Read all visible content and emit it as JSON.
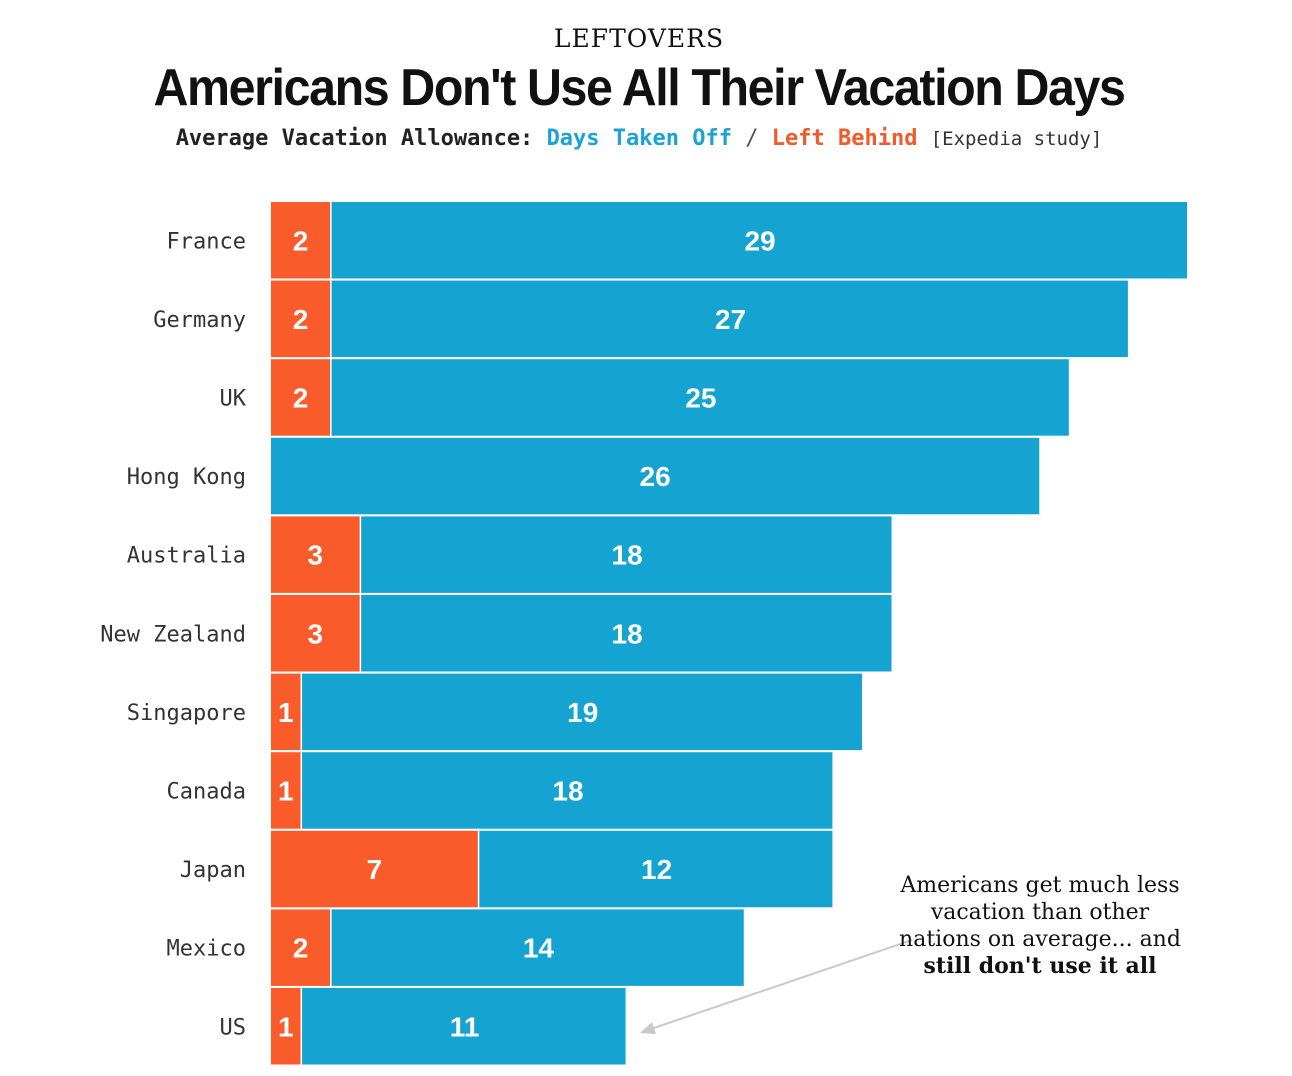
{
  "header": {
    "kicker": "LEFTOVERS",
    "title": "Americans Don't Use All Their Vacation Days",
    "subtitle_prefix": "Average Vacation Allowance:",
    "subtitle_taken": "Days Taken Off",
    "subtitle_slash": "/",
    "subtitle_left": "Left Behind",
    "subtitle_source": "[Expedia study]"
  },
  "annotation": {
    "text_plain": "Americans get much less vacation than other nations on average... and",
    "text_bold": "still don't use it all"
  },
  "colors": {
    "taken": "#15a3d2",
    "left_behind": "#f95b2a",
    "taken_text": "#1aa3d3",
    "left_text": "#f15a2b"
  },
  "chart_data": {
    "type": "bar",
    "orientation": "horizontal",
    "stacked": true,
    "categories": [
      "France",
      "Germany",
      "UK",
      "Hong Kong",
      "Australia",
      "New Zealand",
      "Singapore",
      "Canada",
      "Japan",
      "Mexico",
      "US"
    ],
    "series": [
      {
        "name": "Left Behind",
        "values": [
          2,
          2,
          2,
          0,
          3,
          3,
          1,
          1,
          7,
          2,
          1
        ]
      },
      {
        "name": "Days Taken Off",
        "values": [
          29,
          27,
          25,
          26,
          18,
          18,
          19,
          18,
          12,
          14,
          11
        ]
      }
    ],
    "xlim": [
      0,
      31
    ],
    "grid": false,
    "legend": "in subtitle"
  }
}
